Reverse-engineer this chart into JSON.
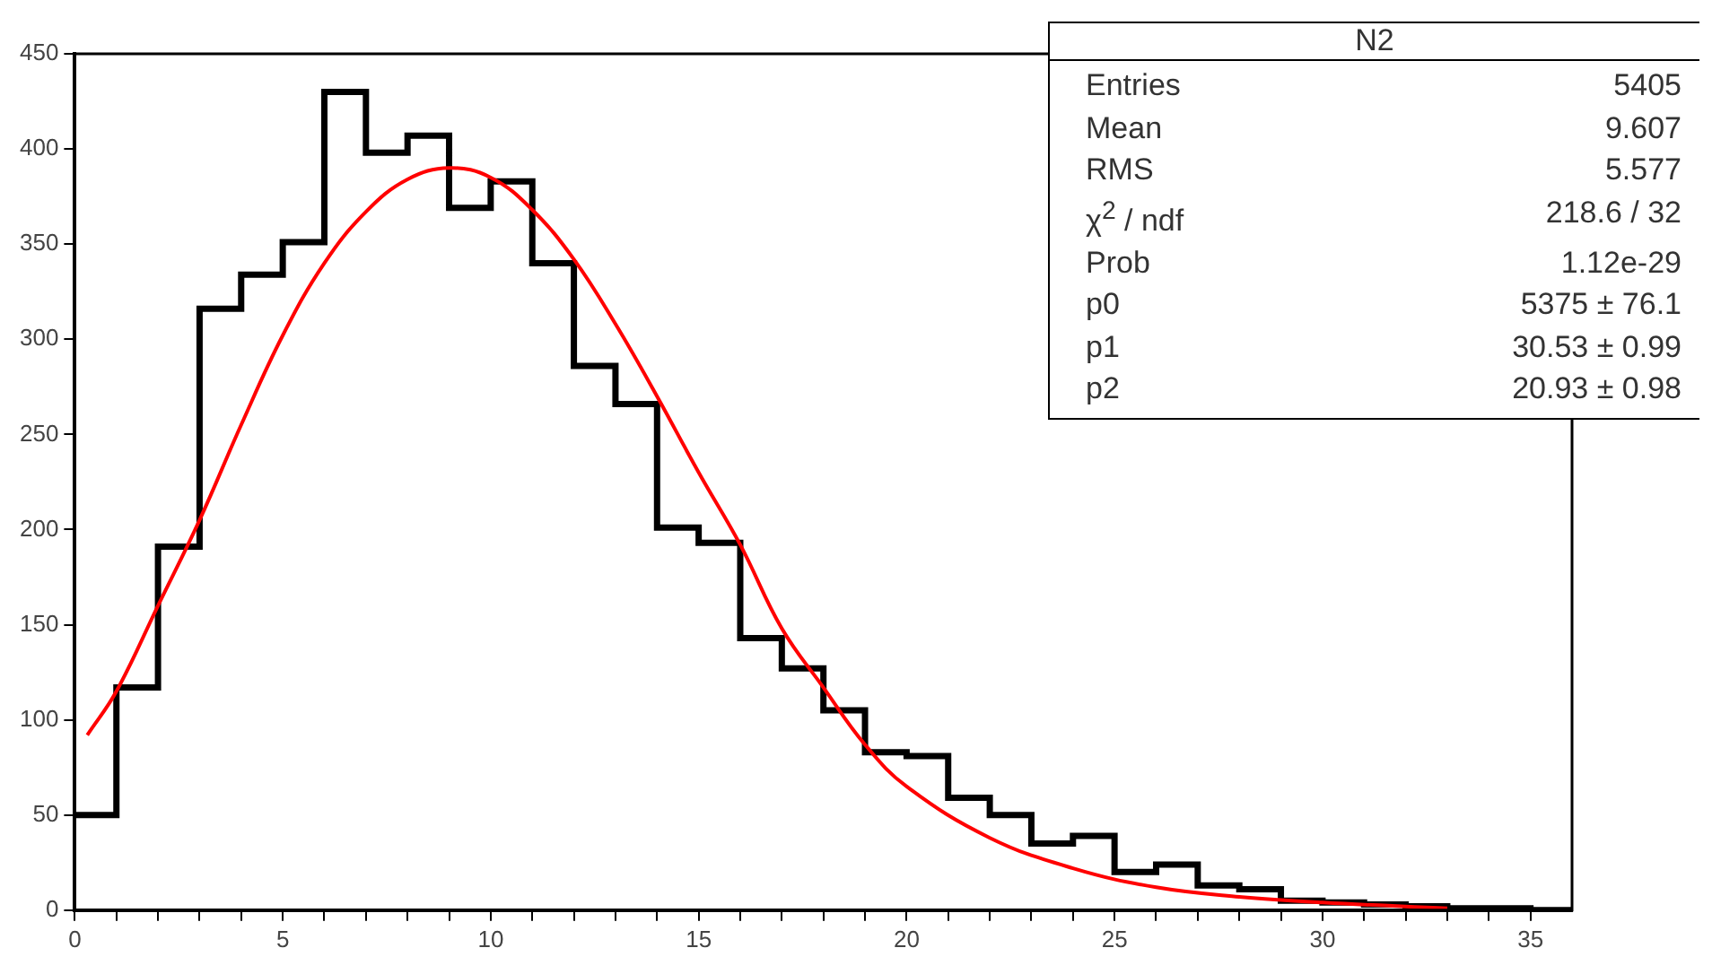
{
  "chart_data": {
    "type": "histogram",
    "bins": [
      0,
      1,
      2,
      3,
      4,
      5,
      6,
      7,
      8,
      9,
      10,
      11,
      12,
      13,
      14,
      15,
      16,
      17,
      18,
      19,
      20,
      21,
      22,
      23,
      24,
      25,
      26,
      27,
      28,
      29,
      30,
      31,
      32,
      33,
      34,
      35,
      36
    ],
    "series": [
      {
        "type": "histogram",
        "color": "#000000",
        "values": [
          50,
          117,
          191,
          316,
          334,
          351,
          430,
          398,
          407,
          369,
          383,
          340,
          286,
          266,
          201,
          193,
          143,
          127,
          105,
          83,
          81,
          59,
          50,
          35,
          39,
          20,
          24,
          13,
          11,
          5,
          4,
          3,
          2,
          1,
          1,
          0
        ]
      },
      {
        "type": "line",
        "color": "#ff0000",
        "x": [
          0.3,
          1,
          2,
          3,
          4,
          5,
          6,
          7,
          8,
          9,
          10,
          11,
          12,
          13,
          14,
          15,
          16,
          17,
          18,
          19,
          20,
          22,
          24,
          26,
          28,
          30,
          33
        ],
        "values": [
          92,
          115,
          160,
          205,
          255,
          302,
          340,
          367,
          384,
          390,
          385,
          368,
          342,
          308,
          270,
          230,
          192,
          148,
          117,
          87,
          65,
          38,
          22,
          12,
          7,
          4,
          1
        ]
      }
    ],
    "xlim": [
      0,
      36
    ],
    "xticks": [
      0,
      {
        "value": 1,
        "label": null
      },
      {
        "value": 2,
        "label": null
      },
      {
        "value": 3,
        "label": null
      },
      {
        "value": 4,
        "label": null
      },
      5,
      {
        "value": 6,
        "label": null
      },
      {
        "value": 7,
        "label": null
      },
      {
        "value": 8,
        "label": null
      },
      {
        "value": 9,
        "label": null
      },
      10,
      {
        "value": 11,
        "label": null
      },
      {
        "value": 12,
        "label": null
      },
      {
        "value": 13,
        "label": null
      },
      {
        "value": 14,
        "label": null
      },
      15,
      {
        "value": 16,
        "label": null
      },
      {
        "value": 17,
        "label": null
      },
      {
        "value": 18,
        "label": null
      },
      {
        "value": 19,
        "label": null
      },
      20,
      {
        "value": 21,
        "label": null
      },
      {
        "value": 22,
        "label": null
      },
      {
        "value": 23,
        "label": null
      },
      {
        "value": 24,
        "label": null
      },
      25,
      {
        "value": 26,
        "label": null
      },
      {
        "value": 27,
        "label": null
      },
      {
        "value": 28,
        "label": null
      },
      {
        "value": 29,
        "label": null
      },
      30,
      {
        "value": 31,
        "label": null
      },
      {
        "value": 32,
        "label": null
      },
      {
        "value": 33,
        "label": null
      },
      {
        "value": 34,
        "label": null
      },
      35
    ],
    "ylim": [
      0,
      450
    ],
    "yticks": [
      0,
      50,
      100,
      150,
      200,
      250,
      300,
      350,
      400,
      450
    ],
    "grid": false,
    "legend": false,
    "annotations": [
      "N2",
      "Entries",
      "5405",
      "Mean",
      "9.607",
      "RMS",
      "5.577",
      "χ$^{2}$ / ndf",
      "218.6 / 32",
      "Prob",
      "1.12e-29",
      "p0",
      "5375 ± 76.1",
      "p1",
      "30.53 ± 0.99",
      "p2",
      "20.93 ± 0.98"
    ]
  }
}
